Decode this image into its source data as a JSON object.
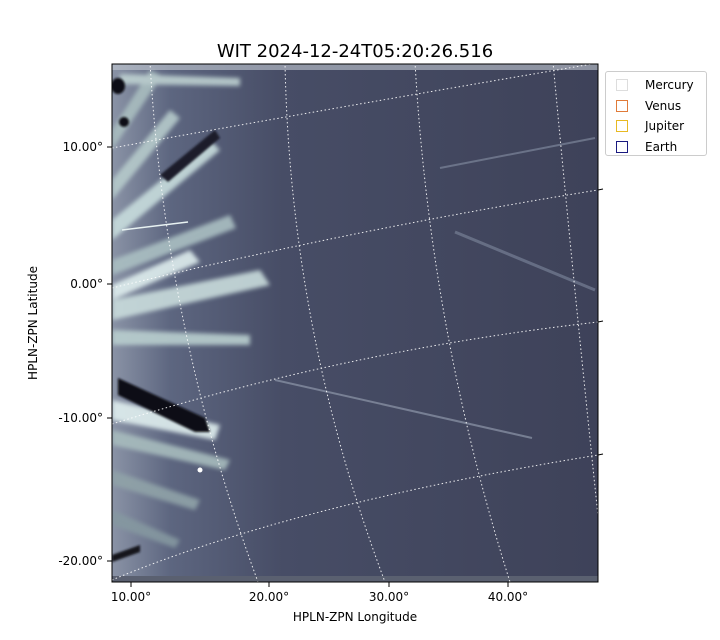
{
  "chart_data": {
    "type": "image",
    "title": "WIT 2024-12-24T05:20:26.516",
    "xlabel": "HPLN-ZPN Longitude",
    "ylabel": "HPLN-ZPN Latitude",
    "x_ticks": [
      "10.00°",
      "20.00°",
      "30.00°",
      "40.00°"
    ],
    "y_ticks": [
      "10.00°",
      "0.00°",
      "-10.00°",
      "-20.00°"
    ],
    "grid": true,
    "colormap": "bone (grayscale blue-tinted)",
    "legend_position": "outside-top-right",
    "legend": [
      {
        "label": "Mercury",
        "color": "#dddddd"
      },
      {
        "label": "Venus",
        "color": "#e07b39"
      },
      {
        "label": "Jupiter",
        "color": "#e8b923"
      },
      {
        "label": "Earth",
        "color": "#1a1a80"
      }
    ]
  }
}
